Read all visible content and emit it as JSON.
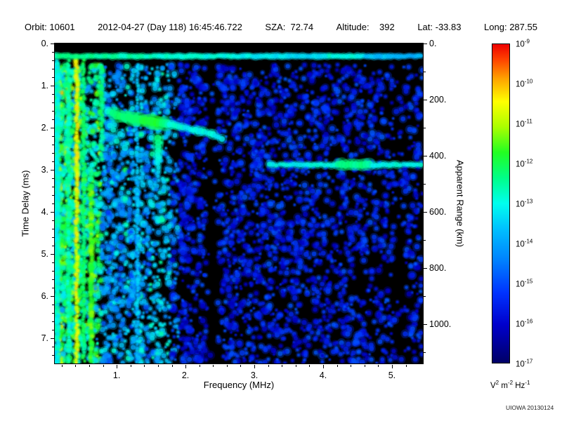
{
  "header": {
    "orbit": "Orbit: 10601",
    "datetime": "2012-04-27 (Day 118) 16:45:46.722",
    "sza": "SZA:  72.74",
    "altitude": "Altitude:    392",
    "lat": "Lat: -33.83",
    "long": "Long: 287.55"
  },
  "footer": {
    "credit": "UIOWA 20130124"
  },
  "chart_data": {
    "type": "heatmap",
    "title": "AIS radar sounder ionogram spectrogram",
    "xlabel": "Frequency (MHz)",
    "ylabel_left": "Time Delay (ms)",
    "ylabel_right": "Apparent Range (km)",
    "xlim": [
      0.1,
      5.45
    ],
    "ylim_ms": [
      0,
      7.6
    ],
    "x_ticks": [
      {
        "v": 1,
        "label": "1."
      },
      {
        "v": 2,
        "label": "2."
      },
      {
        "v": 3,
        "label": "3."
      },
      {
        "v": 4,
        "label": "4."
      },
      {
        "v": 5,
        "label": "5."
      }
    ],
    "y_ticks_left": [
      {
        "v": 0,
        "label": "0."
      },
      {
        "v": 1,
        "label": "1."
      },
      {
        "v": 2,
        "label": "2."
      },
      {
        "v": 3,
        "label": "3."
      },
      {
        "v": 4,
        "label": "4."
      },
      {
        "v": 5,
        "label": "5."
      },
      {
        "v": 6,
        "label": "6."
      },
      {
        "v": 7,
        "label": "7."
      }
    ],
    "y_ticks_right": [
      {
        "v": 0,
        "label": "0."
      },
      {
        "v": 200,
        "label": "200."
      },
      {
        "v": 400,
        "label": "400."
      },
      {
        "v": 600,
        "label": "600."
      },
      {
        "v": 800,
        "label": "800."
      },
      {
        "v": 1000,
        "label": "1000."
      }
    ],
    "range_km_per_ms": 150,
    "colorbar": {
      "mantissa": "10",
      "exponent_ticks": [
        -9,
        -10,
        -11,
        -12,
        -13,
        -14,
        -15,
        -16,
        -17
      ],
      "unit_parts": [
        [
          "V",
          "2"
        ],
        [
          "m",
          "-2"
        ],
        [
          "Hz",
          "-1"
        ]
      ],
      "colormap": [
        [
          0.0,
          "#000066"
        ],
        [
          0.12,
          "#0000cc"
        ],
        [
          0.22,
          "#0033ff"
        ],
        [
          0.32,
          "#0080ff"
        ],
        [
          0.42,
          "#00c0ff"
        ],
        [
          0.5,
          "#00ffee"
        ],
        [
          0.58,
          "#00ff88"
        ],
        [
          0.66,
          "#22ff22"
        ],
        [
          0.74,
          "#aaff00"
        ],
        [
          0.82,
          "#ffff00"
        ],
        [
          0.89,
          "#ffa500"
        ],
        [
          0.95,
          "#ff4500"
        ],
        [
          1.0,
          "#ee0000"
        ]
      ]
    },
    "seed": 7,
    "features": {
      "noise": {
        "count": 5200,
        "left_skew": 1.65,
        "start_delay": 0.5
      },
      "bright_left": {
        "f_max": 0.78,
        "boost": 0.3
      },
      "mid_left": {
        "f_max": 1.8,
        "boost": 0.13
      },
      "stripe_fmax": 1.9,
      "gaps": [
        {
          "f0": 2.3,
          "f1": 2.47,
          "p": 0.88
        },
        {
          "f0": 5.03,
          "f1": 5.17,
          "p": 0.72
        }
      ],
      "vertical_lines": [
        {
          "f": 0.14,
          "t": 0.5,
          "d0": 0.4,
          "d1": 7.6,
          "r": 2.6
        },
        {
          "f": 0.3,
          "t": 0.55,
          "d0": 0.4,
          "d1": 7.6,
          "r": 2.2
        },
        {
          "f": 0.42,
          "t": 0.8,
          "d0": 0.3,
          "d1": 7.6,
          "r": 2.2
        },
        {
          "f": 0.52,
          "t": 0.6,
          "d0": 0.4,
          "d1": 7.6,
          "r": 2.0
        },
        {
          "f": 0.63,
          "t": 0.68,
          "d0": 3.4,
          "d1": 7.6,
          "r": 2.4
        },
        {
          "f": 0.78,
          "t": 0.58,
          "d0": 0.5,
          "d1": 2.8,
          "r": 2.4
        },
        {
          "f": 1.3,
          "t": 0.42,
          "d0": 0.5,
          "d1": 7.6,
          "r": 1.8
        }
      ],
      "top_line": {
        "delay": 0.3,
        "t_left": 0.58,
        "t_right": 0.4,
        "bright2": [
          4.1,
          4.6
        ]
      },
      "ionosphere_trace": {
        "points": [
          [
            0.86,
            1.6
          ],
          [
            0.95,
            1.67
          ],
          [
            1.05,
            1.72
          ],
          [
            1.15,
            1.76
          ],
          [
            1.26,
            1.79
          ],
          [
            1.38,
            1.82
          ],
          [
            1.5,
            1.85
          ],
          [
            1.63,
            1.89
          ],
          [
            1.77,
            1.93
          ],
          [
            1.92,
            1.98
          ],
          [
            2.07,
            2.03
          ],
          [
            2.22,
            2.09
          ],
          [
            2.36,
            2.15
          ],
          [
            2.48,
            2.22
          ],
          [
            2.58,
            2.3
          ]
        ],
        "bright": [
          0.95,
          1.75
        ]
      },
      "echo_blobs": [
        [
          0.95,
          2.05
        ],
        [
          1.05,
          2.15
        ],
        [
          1.0,
          2.32
        ],
        [
          1.12,
          2.48
        ],
        [
          0.9,
          1.95
        ],
        [
          1.22,
          2.6
        ]
      ],
      "cusp": {
        "f": 1.6,
        "d0": 2.25,
        "d1": 3.35,
        "t": 0.6
      },
      "ground_trace": {
        "delay": 2.88,
        "f0": 3.22,
        "f1": 5.44,
        "t": 0.5,
        "bright": [
          4.2,
          4.7
        ]
      }
    }
  }
}
